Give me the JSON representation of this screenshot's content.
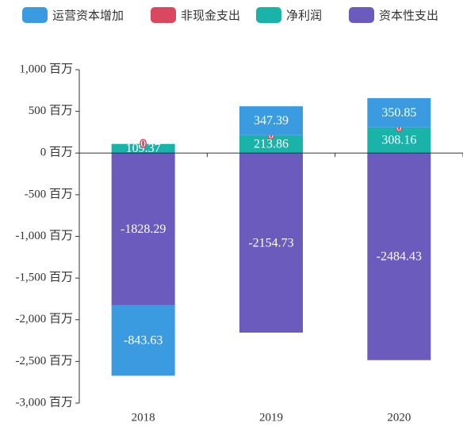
{
  "chart_data": {
    "type": "bar",
    "stacked": true,
    "categories": [
      "2018",
      "2019",
      "2020"
    ],
    "series": [
      {
        "name": "运营资本增加",
        "color": "#3a9be0",
        "values": [
          -843.63,
          347.39,
          350.85
        ]
      },
      {
        "name": "非现金支出",
        "color": "#d9485f",
        "values": [
          0,
          0,
          0
        ]
      },
      {
        "name": "净利润",
        "color": "#1ab3aa",
        "values": [
          109.37,
          213.86,
          308.16
        ]
      },
      {
        "name": "资本性支出",
        "color": "#6a5bbd",
        "values": [
          -1828.29,
          -2154.73,
          -2484.43
        ]
      }
    ],
    "ylim": [
      -3000,
      1000
    ],
    "yticks": [
      {
        "value": -3000,
        "label": "-3,000 百万"
      },
      {
        "value": -2500,
        "label": "-2,500 百万"
      },
      {
        "value": -2000,
        "label": "-2,000 百万"
      },
      {
        "value": -1500,
        "label": "-1,500 百万"
      },
      {
        "value": -1000,
        "label": "-1,000 百万"
      },
      {
        "value": -500,
        "label": "-500 百万"
      },
      {
        "value": 0,
        "label": "0 百万"
      },
      {
        "value": 500,
        "label": "500 百万"
      },
      {
        "value": 1000,
        "label": "1,000 百万"
      }
    ],
    "grid": false,
    "legend": "top"
  }
}
